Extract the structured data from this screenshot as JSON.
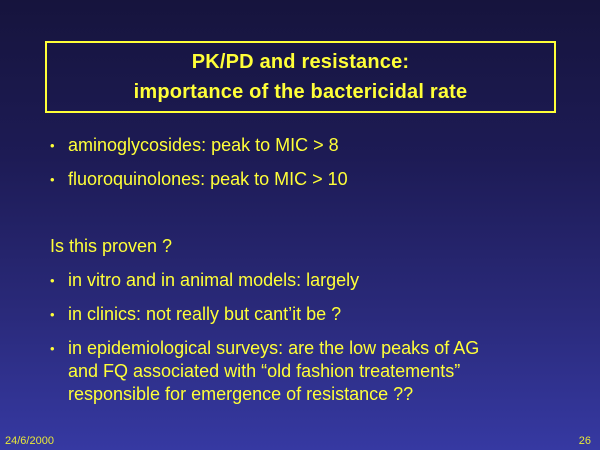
{
  "slide": {
    "bullet_glyph": "•",
    "title": {
      "line1": "PK/PD and resistance:",
      "line2": "importance of the bactericidal rate"
    },
    "bullets_top": [
      "aminoglycosides: peak to MIC > 8",
      "fluoroquinolones: peak to MIC > 10"
    ],
    "question": "Is this proven ?",
    "bullets_bottom": [
      "in vitro and in animal models: largely",
      "in clinics: not really but cant’it be ?",
      "in epidemiological surveys: are the low peaks of AG\nand FQ associated with “old fashion treatements”\nresponsible for emergence of resistance ??"
    ],
    "footer": {
      "date": "24/6/2000",
      "page": "26"
    },
    "colors": {
      "text_yellow": "#ffff38",
      "border_yellow": "#ffff38",
      "background_top": "#16143d",
      "background_bottom": "#3639a2"
    }
  }
}
